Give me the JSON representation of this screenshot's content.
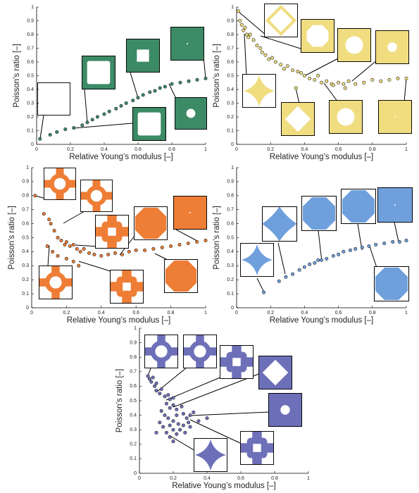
{
  "chart_data": [
    {
      "type": "scatter",
      "xlabel": "Relative Young’s modulus [–]",
      "ylabel": "Poisson’s ratio [–]",
      "color": "#3d8a66",
      "x": [
        0.02,
        0.08,
        0.12,
        0.17,
        0.22,
        0.27,
        0.3,
        0.33,
        0.36,
        0.4,
        0.43,
        0.47,
        0.5,
        0.53,
        0.57,
        0.6,
        0.63,
        0.67,
        0.7,
        0.73,
        0.76,
        0.8,
        0.85,
        0.9,
        0.95,
        1
      ],
      "values": [
        0.04,
        0.07,
        0.09,
        0.11,
        0.12,
        0.14,
        0.16,
        0.18,
        0.2,
        0.22,
        0.24,
        0.26,
        0.28,
        0.3,
        0.32,
        0.34,
        0.36,
        0.38,
        0.39,
        0.41,
        0.42,
        0.44,
        0.45,
        0.46,
        0.47,
        0.48
      ],
      "xlim": [
        0,
        1
      ],
      "ylim": [
        0,
        1
      ],
      "xticks": [
        0,
        0.2,
        0.4,
        0.6,
        0.8,
        1
      ],
      "yticks": [
        0,
        0.1,
        0.2,
        0.3,
        0.4,
        0.5,
        0.6,
        0.7,
        0.8,
        0.9,
        1
      ]
    },
    {
      "type": "scatter",
      "xlabel": "Relative Young’s modulus [–]",
      "ylabel": "Poisson’s ratio [–]",
      "color": "#f0dd80",
      "x": [
        0.01,
        0.02,
        0.03,
        0.04,
        0.05,
        0.06,
        0.07,
        0.08,
        0.1,
        0.12,
        0.14,
        0.15,
        0.17,
        0.19,
        0.21,
        0.23,
        0.26,
        0.28,
        0.3,
        0.33,
        0.36,
        0.38,
        0.4,
        0.43,
        0.46,
        0.48,
        0.5,
        0.53,
        0.56,
        0.6,
        0.63,
        0.66,
        0.7,
        0.75,
        0.8,
        0.85,
        0.9,
        0.95,
        1,
        0.35,
        0.64,
        0.57
      ],
      "values": [
        0.97,
        0.9,
        0.87,
        0.83,
        0.85,
        0.8,
        0.78,
        0.8,
        0.76,
        0.72,
        0.7,
        0.67,
        0.65,
        0.62,
        0.63,
        0.6,
        0.58,
        0.55,
        0.57,
        0.54,
        0.53,
        0.52,
        0.5,
        0.48,
        0.47,
        0.5,
        0.45,
        0.46,
        0.44,
        0.45,
        0.44,
        0.46,
        0.44,
        0.45,
        0.47,
        0.46,
        0.47,
        0.48,
        0.48,
        0.41,
        0.41,
        0.43
      ],
      "xlim": [
        0,
        1
      ],
      "ylim": [
        0,
        1
      ],
      "xticks": [
        0,
        0.2,
        0.4,
        0.6,
        0.8,
        1
      ],
      "yticks": [
        0,
        0.1,
        0.2,
        0.3,
        0.4,
        0.5,
        0.6,
        0.7,
        0.8,
        0.9,
        1
      ]
    },
    {
      "type": "scatter",
      "xlabel": "Relative Young’s modulus [–]",
      "ylabel": "Poisson’s ratio [–]",
      "color": "#ee7d35",
      "x": [
        0.02,
        0.07,
        0.1,
        0.11,
        0.13,
        0.15,
        0.17,
        0.19,
        0.2,
        0.22,
        0.24,
        0.26,
        0.28,
        0.3,
        0.33,
        0.36,
        0.4,
        0.44,
        0.48,
        0.52,
        0.56,
        0.6,
        0.65,
        0.7,
        0.75,
        0.8,
        0.85,
        0.9,
        0.95,
        1,
        0.09,
        0.12,
        0.15,
        0.2,
        0.24,
        0.27
      ],
      "values": [
        0.8,
        0.67,
        0.63,
        0.6,
        0.55,
        0.5,
        0.48,
        0.45,
        0.47,
        0.44,
        0.45,
        0.42,
        0.4,
        0.42,
        0.39,
        0.38,
        0.37,
        0.38,
        0.39,
        0.38,
        0.4,
        0.41,
        0.41,
        0.42,
        0.43,
        0.44,
        0.45,
        0.46,
        0.47,
        0.48,
        0.44,
        0.4,
        0.37,
        0.35,
        0.33,
        0.3
      ],
      "xlim": [
        0,
        1
      ],
      "ylim": [
        0,
        1
      ],
      "xticks": [
        0,
        0.2,
        0.4,
        0.6,
        0.8,
        1
      ],
      "yticks": [
        0,
        0.1,
        0.2,
        0.3,
        0.4,
        0.5,
        0.6,
        0.7,
        0.8,
        0.9,
        1
      ]
    },
    {
      "type": "scatter",
      "xlabel": "Relative Young’s modulus [–]",
      "ylabel": "Poisson’s ratio [–]",
      "color": "#6fa0dc",
      "x": [
        0.16,
        0.25,
        0.29,
        0.33,
        0.37,
        0.4,
        0.43,
        0.46,
        0.48,
        0.5,
        0.53,
        0.57,
        0.6,
        0.63,
        0.67,
        0.7,
        0.74,
        0.78,
        0.82,
        0.87,
        0.92,
        0.96,
        1
      ],
      "values": [
        0.11,
        0.19,
        0.22,
        0.24,
        0.27,
        0.29,
        0.31,
        0.32,
        0.34,
        0.34,
        0.35,
        0.37,
        0.38,
        0.4,
        0.41,
        0.42,
        0.43,
        0.44,
        0.45,
        0.46,
        0.47,
        0.47,
        0.48
      ],
      "xlim": [
        0,
        1
      ],
      "ylim": [
        0,
        1
      ],
      "xticks": [
        0,
        0.2,
        0.4,
        0.6,
        0.8,
        1
      ],
      "yticks": [
        0,
        0.1,
        0.2,
        0.3,
        0.4,
        0.5,
        0.6,
        0.7,
        0.8,
        0.9,
        1
      ]
    },
    {
      "type": "scatter",
      "xlabel": "Relative Young’s modulus [–]",
      "ylabel": "Poisson’s ratio [–]",
      "color": "#6d70b8",
      "x": [
        0.05,
        0.06,
        0.07,
        0.08,
        0.09,
        0.1,
        0.1,
        0.12,
        0.13,
        0.15,
        0.17,
        0.18,
        0.2,
        0.16,
        0.18,
        0.2,
        0.22,
        0.25,
        0.13,
        0.15,
        0.17,
        0.2,
        0.22,
        0.26,
        0.28,
        0.3,
        0.32,
        0.12,
        0.14,
        0.18,
        0.2,
        0.23,
        0.26,
        0.29,
        0.16,
        0.18,
        0.2,
        0.22,
        0.24,
        0.27,
        0.3,
        0.35,
        0.4,
        0.1
      ],
      "values": [
        0.67,
        0.65,
        0.63,
        0.66,
        0.6,
        0.62,
        0.57,
        0.55,
        0.58,
        0.53,
        0.54,
        0.51,
        0.52,
        0.48,
        0.45,
        0.47,
        0.44,
        0.46,
        0.43,
        0.4,
        0.38,
        0.36,
        0.4,
        0.41,
        0.38,
        0.4,
        0.42,
        0.35,
        0.32,
        0.33,
        0.3,
        0.34,
        0.33,
        0.35,
        0.28,
        0.25,
        0.22,
        0.27,
        0.3,
        0.28,
        0.32,
        0.36,
        0.38,
        0.28
      ],
      "xlim": [
        0,
        1
      ],
      "ylim": [
        0,
        1
      ],
      "xticks": [
        0,
        0.2,
        0.4,
        0.6,
        0.8,
        1
      ],
      "yticks": [
        0,
        0.1,
        0.2,
        0.3,
        0.4,
        0.5,
        0.6,
        0.7,
        0.8,
        0.9,
        1
      ]
    }
  ]
}
